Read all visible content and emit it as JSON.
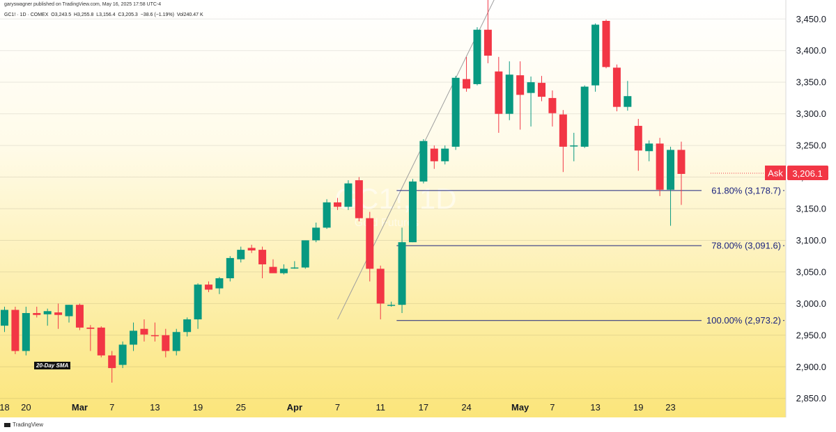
{
  "header": {
    "caption": "garyswagner published on TradingView.com, May 16, 2025 17:58 UTC-4",
    "ohlc": "GC1! · 1D · COMEX  O3,243.5  H3,255.8  L3,156.4  C3,205.3  −38.6 (−1.19%)  Vol240.47 K"
  },
  "watermark": {
    "symbol": "GC1!, 1D",
    "name": "Gold Futures"
  },
  "sma_label": "20-Day SMA",
  "footer": "TradingView",
  "price_tag": {
    "label": "Ask",
    "value": "3,206.1",
    "price": 3206.1,
    "color": "#f23645"
  },
  "colors": {
    "up": "#089981",
    "down": "#f23645",
    "fib": "#1a237e",
    "tag": "#f23645"
  },
  "chart_data": {
    "type": "candlestick",
    "ylim": [
      2820,
      3480
    ],
    "y_ticks": [
      {
        "value": 2850,
        "label": "2,850.0"
      },
      {
        "value": 2900,
        "label": "2,900.0"
      },
      {
        "value": 2950,
        "label": "2,950.0"
      },
      {
        "value": 3000,
        "label": "3,000.0"
      },
      {
        "value": 3050,
        "label": "3,050.0"
      },
      {
        "value": 3100,
        "label": "3,100.0"
      },
      {
        "value": 3150,
        "label": "3,150.0"
      },
      {
        "value": 3200,
        "label": "3,200.0"
      },
      {
        "value": 3250,
        "label": "3,250.0"
      },
      {
        "value": 3300,
        "label": "3,300.0"
      },
      {
        "value": 3350,
        "label": "3,350.0"
      },
      {
        "value": 3400,
        "label": "3,400.0"
      },
      {
        "value": 3450,
        "label": "3,450.0"
      }
    ],
    "x_ticks": [
      {
        "index": 0,
        "label": "18",
        "bold": false
      },
      {
        "index": 2,
        "label": "20",
        "bold": false
      },
      {
        "index": 7,
        "label": "Mar",
        "bold": true
      },
      {
        "index": 10,
        "label": "7",
        "bold": false
      },
      {
        "index": 14,
        "label": "13",
        "bold": false
      },
      {
        "index": 18,
        "label": "19",
        "bold": false
      },
      {
        "index": 22,
        "label": "25",
        "bold": false
      },
      {
        "index": 27,
        "label": "Apr",
        "bold": true
      },
      {
        "index": 31,
        "label": "7",
        "bold": false
      },
      {
        "index": 35,
        "label": "11",
        "bold": false
      },
      {
        "index": 39,
        "label": "17",
        "bold": false
      },
      {
        "index": 43,
        "label": "24",
        "bold": false
      },
      {
        "index": 48,
        "label": "May",
        "bold": true
      },
      {
        "index": 51,
        "label": "7",
        "bold": false
      },
      {
        "index": 55,
        "label": "13",
        "bold": false
      },
      {
        "index": 59,
        "label": "19",
        "bold": false
      },
      {
        "index": 62,
        "label": "23",
        "bold": false
      }
    ],
    "candles": [
      {
        "o": 2965,
        "h": 2995,
        "l": 2955,
        "c": 2990
      },
      {
        "o": 2990,
        "h": 2995,
        "l": 2920,
        "c": 2925
      },
      {
        "o": 2925,
        "h": 2995,
        "l": 2918,
        "c": 2985
      },
      {
        "o": 2985,
        "h": 2995,
        "l": 2978,
        "c": 2982
      },
      {
        "o": 2983,
        "h": 2992,
        "l": 2965,
        "c": 2988
      },
      {
        "o": 2986,
        "h": 3000,
        "l": 2960,
        "c": 2982
      },
      {
        "o": 2980,
        "h": 2998,
        "l": 2970,
        "c": 2998
      },
      {
        "o": 2998,
        "h": 3000,
        "l": 2958,
        "c": 2962
      },
      {
        "o": 2962,
        "h": 2966,
        "l": 2925,
        "c": 2960
      },
      {
        "o": 2962,
        "h": 2964,
        "l": 2915,
        "c": 2918
      },
      {
        "o": 2918,
        "h": 2925,
        "l": 2875,
        "c": 2898
      },
      {
        "o": 2903,
        "h": 2940,
        "l": 2898,
        "c": 2935
      },
      {
        "o": 2935,
        "h": 2970,
        "l": 2925,
        "c": 2957
      },
      {
        "o": 2960,
        "h": 2975,
        "l": 2940,
        "c": 2951
      },
      {
        "o": 2950,
        "h": 2970,
        "l": 2940,
        "c": 2949
      },
      {
        "o": 2950,
        "h": 2960,
        "l": 2915,
        "c": 2925
      },
      {
        "o": 2925,
        "h": 2960,
        "l": 2918,
        "c": 2955
      },
      {
        "o": 2955,
        "h": 2978,
        "l": 2948,
        "c": 2975
      },
      {
        "o": 2975,
        "h": 3032,
        "l": 2960,
        "c": 3030
      },
      {
        "o": 3030,
        "h": 3035,
        "l": 3018,
        "c": 3022
      },
      {
        "o": 3024,
        "h": 3042,
        "l": 3015,
        "c": 3040
      },
      {
        "o": 3040,
        "h": 3075,
        "l": 3035,
        "c": 3072
      },
      {
        "o": 3070,
        "h": 3090,
        "l": 3065,
        "c": 3085
      },
      {
        "o": 3088,
        "h": 3093,
        "l": 3080,
        "c": 3084
      },
      {
        "o": 3085,
        "h": 3090,
        "l": 3040,
        "c": 3062
      },
      {
        "o": 3058,
        "h": 3070,
        "l": 3050,
        "c": 3048
      },
      {
        "o": 3048,
        "h": 3062,
        "l": 3046,
        "c": 3055
      },
      {
        "o": 3056,
        "h": 3067,
        "l": 3055,
        "c": 3057
      },
      {
        "o": 3057,
        "h": 3100,
        "l": 3055,
        "c": 3100
      },
      {
        "o": 3100,
        "h": 3128,
        "l": 3097,
        "c": 3120
      },
      {
        "o": 3120,
        "h": 3165,
        "l": 3118,
        "c": 3160
      },
      {
        "o": 3160,
        "h": 3167,
        "l": 3148,
        "c": 3153
      },
      {
        "o": 3153,
        "h": 3195,
        "l": 3148,
        "c": 3190
      },
      {
        "o": 3195,
        "h": 3200,
        "l": 3130,
        "c": 3135
      },
      {
        "o": 3135,
        "h": 3145,
        "l": 3035,
        "c": 3055
      },
      {
        "o": 3055,
        "h": 3060,
        "l": 2975,
        "c": 3000
      },
      {
        "o": 2998,
        "h": 3003,
        "l": 2995,
        "c": 2998
      },
      {
        "o": 2998,
        "h": 3120,
        "l": 2985,
        "c": 3097
      },
      {
        "o": 3097,
        "h": 3197,
        "l": 3097,
        "c": 3193
      },
      {
        "o": 3193,
        "h": 3260,
        "l": 3190,
        "c": 3257
      },
      {
        "o": 3245,
        "h": 3250,
        "l": 3213,
        "c": 3225
      },
      {
        "o": 3225,
        "h": 3250,
        "l": 3220,
        "c": 3245
      },
      {
        "o": 3248,
        "h": 3360,
        "l": 3243,
        "c": 3357
      },
      {
        "o": 3355,
        "h": 3390,
        "l": 3335,
        "c": 3340
      },
      {
        "o": 3347,
        "h": 3437,
        "l": 3345,
        "c": 3433
      },
      {
        "o": 3433,
        "h": 3495,
        "l": 3380,
        "c": 3392
      },
      {
        "o": 3367,
        "h": 3390,
        "l": 3270,
        "c": 3300
      },
      {
        "o": 3300,
        "h": 3383,
        "l": 3290,
        "c": 3362
      },
      {
        "o": 3361,
        "h": 3383,
        "l": 3275,
        "c": 3330
      },
      {
        "o": 3333,
        "h": 3359,
        "l": 3280,
        "c": 3350
      },
      {
        "o": 3349,
        "h": 3360,
        "l": 3320,
        "c": 3327
      },
      {
        "o": 3325,
        "h": 3337,
        "l": 3280,
        "c": 3301
      },
      {
        "o": 3299,
        "h": 3306,
        "l": 3208,
        "c": 3248
      },
      {
        "o": 3250,
        "h": 3270,
        "l": 3225,
        "c": 3250
      },
      {
        "o": 3248,
        "h": 3345,
        "l": 3246,
        "c": 3343
      },
      {
        "o": 3345,
        "h": 3443,
        "l": 3335,
        "c": 3441
      },
      {
        "o": 3447,
        "h": 3449,
        "l": 3372,
        "c": 3374
      },
      {
        "o": 3373,
        "h": 3378,
        "l": 3304,
        "c": 3311
      },
      {
        "o": 3311,
        "h": 3352,
        "l": 3305,
        "c": 3328
      },
      {
        "o": 3281,
        "h": 3292,
        "l": 3210,
        "c": 3242
      },
      {
        "o": 3241,
        "h": 3258,
        "l": 3225,
        "c": 3253
      },
      {
        "o": 3253,
        "h": 3262,
        "l": 3170,
        "c": 3180
      },
      {
        "o": 3180,
        "h": 3248,
        "l": 3123,
        "c": 3243
      },
      {
        "o": 3243,
        "h": 3256,
        "l": 3156,
        "c": 3205
      }
    ],
    "fib_levels": [
      {
        "price": 3178.7,
        "label": "61.80% (3,178.7)"
      },
      {
        "price": 3091.6,
        "label": "78.00% (3,091.6)"
      },
      {
        "price": 2973.2,
        "label": "100.00% (2,973.2)"
      }
    ],
    "trendline": {
      "from": {
        "index": 31,
        "price": 2975
      },
      "to": {
        "index": 46,
        "price": 3495
      }
    }
  }
}
